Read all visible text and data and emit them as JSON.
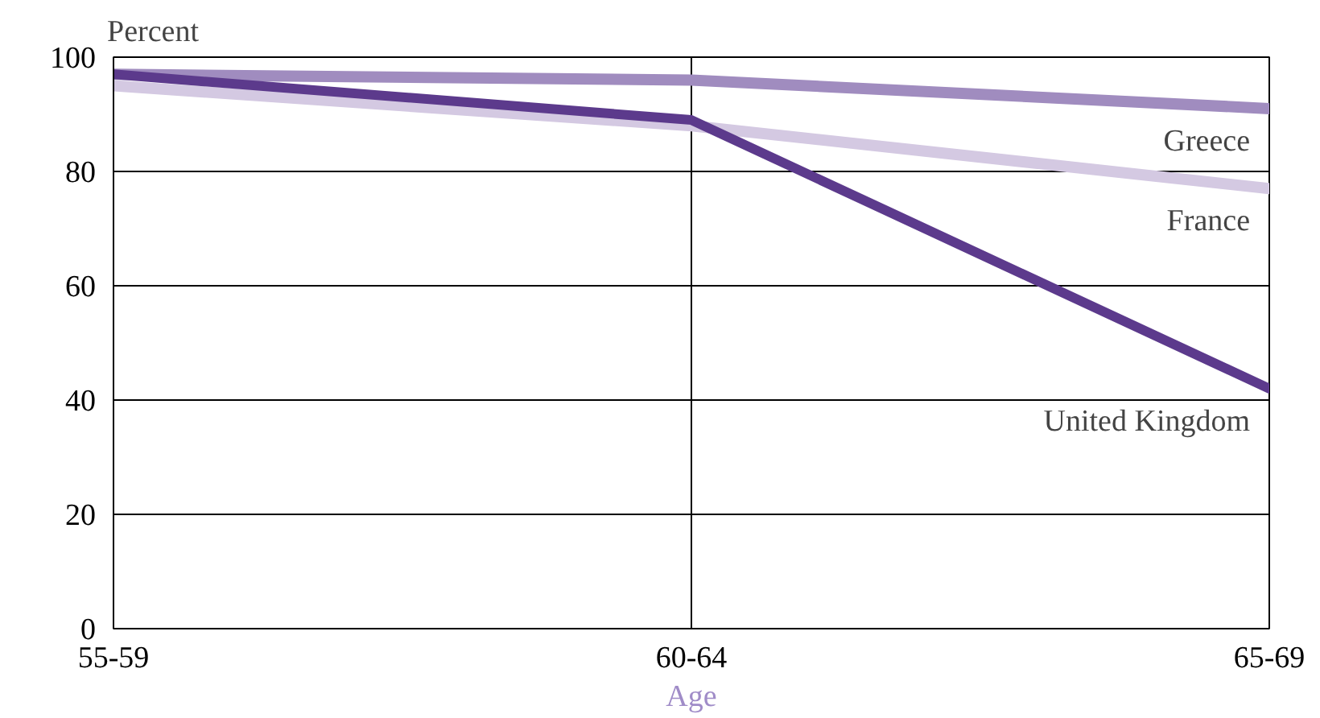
{
  "chart_data": {
    "type": "line",
    "ylabel": "Percent",
    "xlabel": "Age",
    "categories": [
      "55-59",
      "60-64",
      "65-69"
    ],
    "series": [
      {
        "name": "Greece",
        "color": "#a08cbf",
        "values": [
          97,
          96,
          91
        ]
      },
      {
        "name": "France",
        "color": "#d4c9e2",
        "values": [
          95,
          88,
          77
        ]
      },
      {
        "name": "United Kingdom",
        "color": "#5c3a8c",
        "values": [
          97,
          89,
          42
        ]
      }
    ],
    "ylim": [
      0,
      100
    ],
    "yticks": [
      0,
      20,
      40,
      60,
      80,
      100
    ],
    "grid": true,
    "legend": false,
    "marker": "none",
    "line_style": "solid"
  }
}
